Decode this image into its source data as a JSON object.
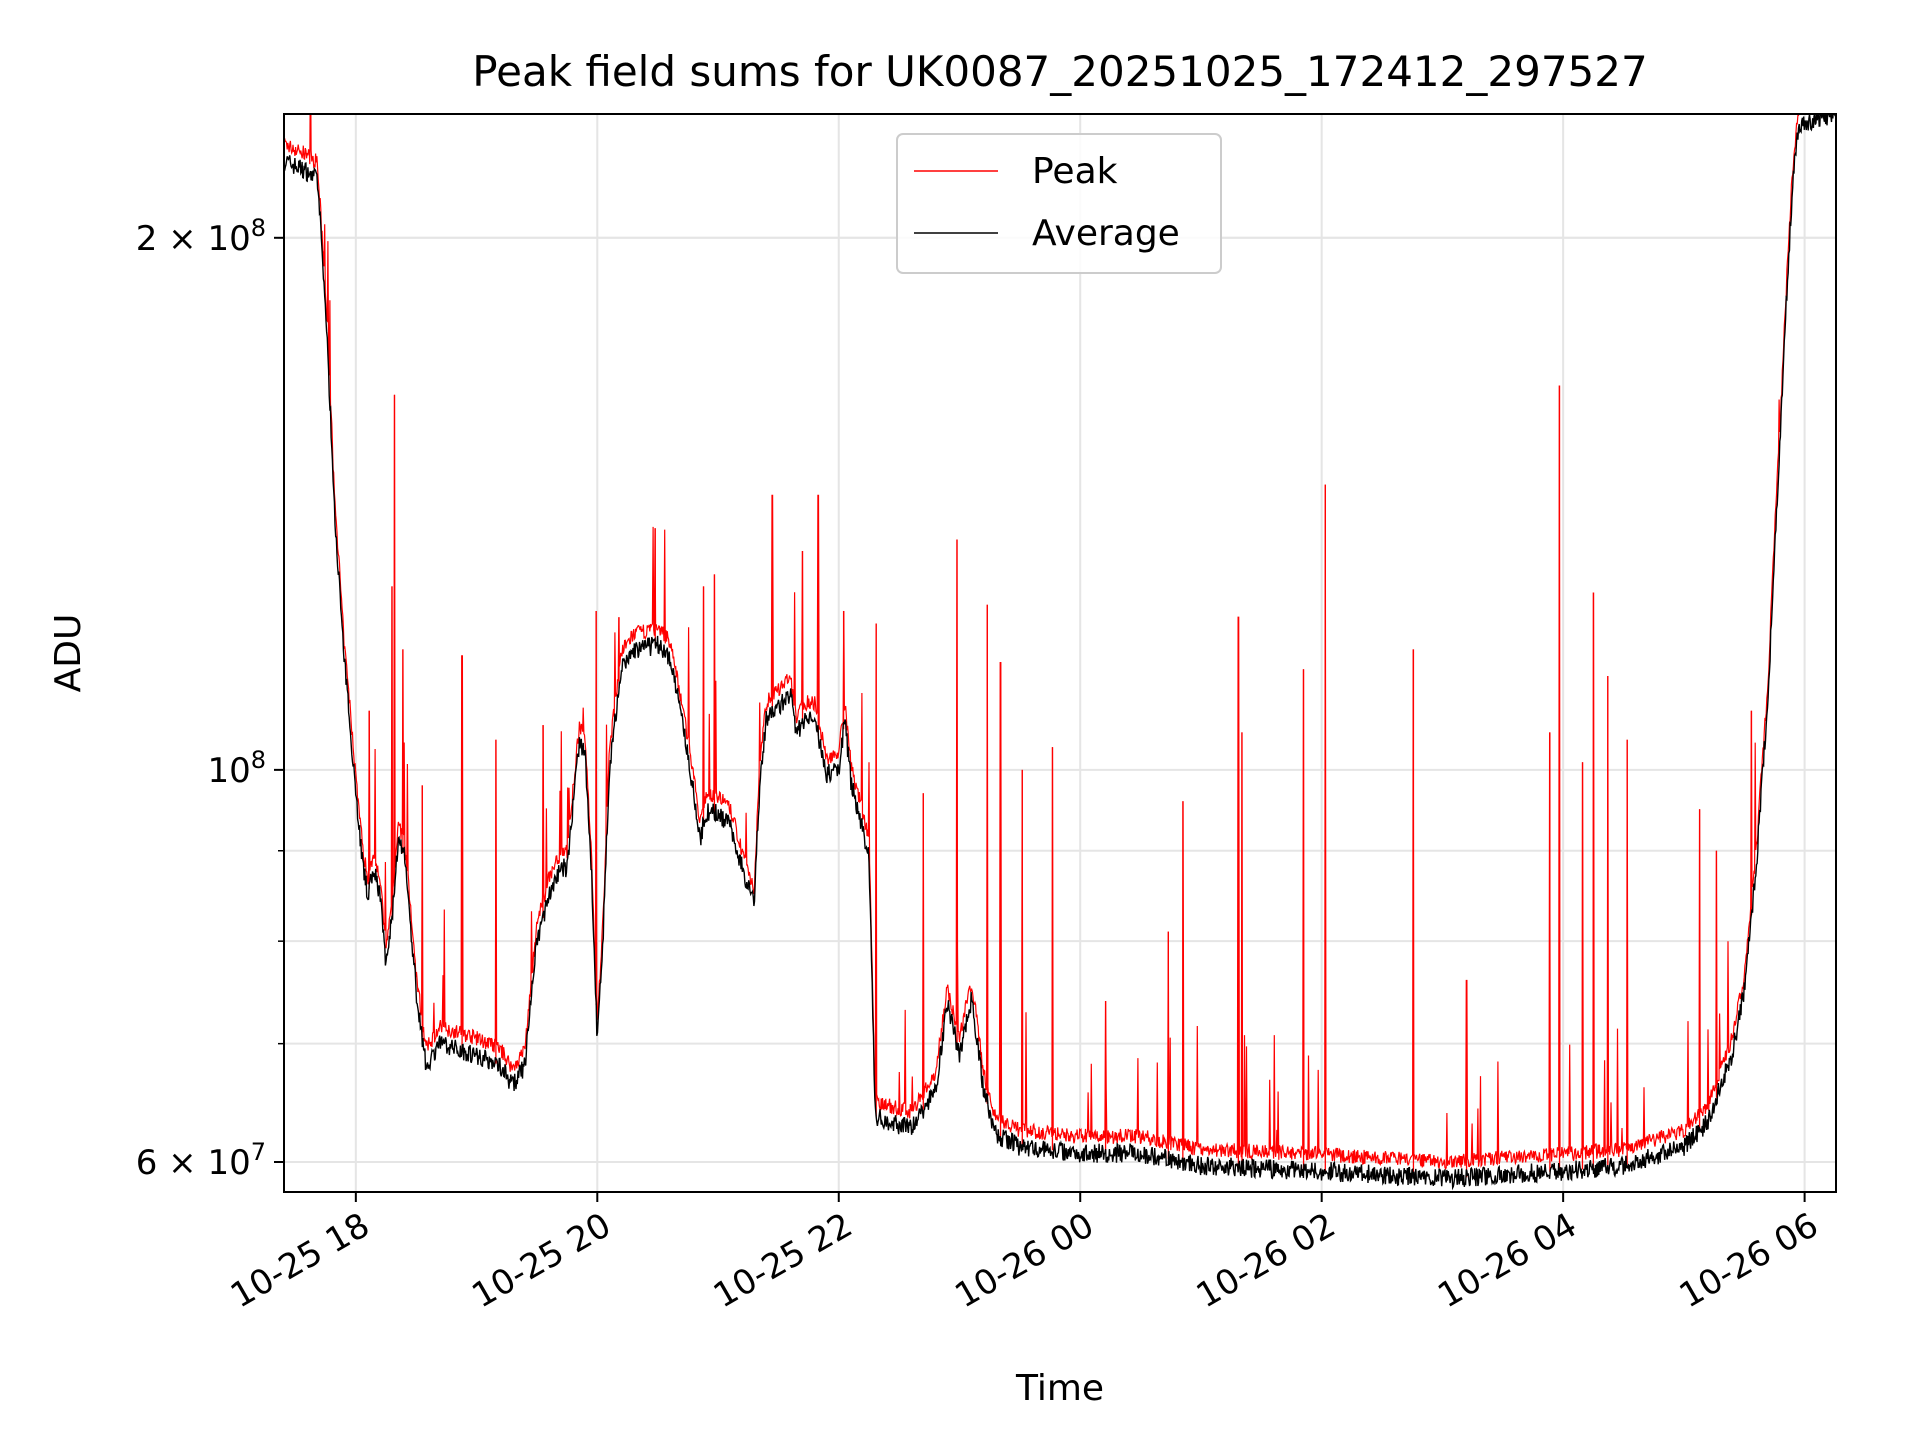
{
  "chart_data": {
    "type": "line",
    "title": "Peak field sums for UK0087_20251025_172412_297527",
    "xlabel": "Time",
    "ylabel": "ADU",
    "yscale": "log",
    "x_units": "hours since 10-25 00:00",
    "y_units": "ADU x 1e6",
    "xlim": [
      17.405,
      30.26
    ],
    "ylim": [
      57.7,
      235
    ],
    "grid": true,
    "legend_position": "top-center",
    "xticks": [
      {
        "value": 18,
        "label": "10-25 18"
      },
      {
        "value": 20,
        "label": "10-25 20"
      },
      {
        "value": 22,
        "label": "10-25 22"
      },
      {
        "value": 24,
        "label": "10-26 00"
      },
      {
        "value": 26,
        "label": "10-26 02"
      },
      {
        "value": 28,
        "label": "10-26 04"
      },
      {
        "value": 30,
        "label": "10-26 06"
      }
    ],
    "yticks_major": [
      {
        "value": 60,
        "base": "6",
        "exp": "7"
      },
      {
        "value": 100,
        "base": "",
        "exp": "8"
      },
      {
        "value": 200,
        "base": "2",
        "exp": "8"
      }
    ],
    "yticks_minor": [
      60,
      70,
      80,
      90,
      200
    ],
    "series": [
      {
        "name": "Average",
        "color": "#000000",
        "x": [
          17.41,
          17.6,
          17.68,
          17.75,
          17.82,
          17.9,
          18.0,
          18.06,
          18.1,
          18.15,
          18.2,
          18.25,
          18.3,
          18.35,
          18.4,
          18.5,
          18.58,
          18.7,
          19.0,
          19.2,
          19.3,
          19.4,
          19.5,
          19.6,
          19.7,
          19.75,
          19.8,
          19.85,
          19.9,
          19.95,
          20.0,
          20.05,
          20.1,
          20.2,
          20.3,
          20.5,
          20.6,
          20.7,
          20.8,
          20.85,
          20.9,
          21.0,
          21.1,
          21.2,
          21.3,
          21.35,
          21.4,
          21.5,
          21.6,
          21.65,
          21.7,
          21.8,
          21.9,
          22.0,
          22.05,
          22.1,
          22.2,
          22.25,
          22.3,
          22.4,
          22.6,
          22.8,
          22.9,
          23.0,
          23.1,
          23.2,
          23.3,
          23.5,
          24.0,
          24.5,
          25.0,
          26.0,
          27.0,
          28.0,
          28.5,
          29.0,
          29.2,
          29.4,
          29.5,
          29.6,
          29.7,
          29.8,
          29.9,
          29.95,
          30.26
        ],
        "y": [
          221,
          218,
          216,
          182,
          141,
          116,
          97,
          88,
          85,
          88,
          85,
          77.3,
          82.5,
          91,
          89.4,
          74.9,
          68,
          70,
          69,
          68,
          66.3,
          68,
          79.9,
          85,
          88,
          88,
          95.4,
          103.5,
          101.8,
          88,
          70,
          81,
          100,
          114,
          116.8,
          117.7,
          115.8,
          106.8,
          97,
          91,
          94.6,
          94.6,
          93,
          88,
          83.8,
          99.4,
          106.8,
          108.6,
          110.4,
          104.3,
          106.8,
          106.8,
          99.4,
          100,
          106.8,
          98.6,
          92.3,
          89.4,
          63.7,
          63.2,
          62.7,
          65.8,
          73.7,
          69,
          74.3,
          65.8,
          62.2,
          61.2,
          60.7,
          60.7,
          59.7,
          59.3,
          58.7,
          59.3,
          59.7,
          61.2,
          63.2,
          69,
          74.9,
          88,
          110.4,
          155,
          214,
          232,
          235
        ]
      },
      {
        "name": "Peak",
        "color": "#ff0000",
        "spikes_x": [
          18.11,
          18.3,
          18.32,
          18.39,
          18.55,
          18.88,
          19.16,
          19.55,
          19.99,
          20.18,
          20.48,
          20.88,
          20.97,
          21.45,
          21.7,
          21.83,
          22.04,
          22.31,
          22.7,
          22.98,
          23.23,
          23.34,
          23.52,
          23.77,
          24.21,
          24.73,
          24.85,
          25.31,
          25.34,
          25.85,
          26.03,
          26.76,
          27.2,
          27.89,
          27.97,
          28.16,
          28.25,
          28.37,
          28.53,
          29.13,
          29.27,
          29.56
        ],
        "spikes_y": [
          108,
          127,
          163,
          117,
          98,
          116,
          104,
          106,
          123,
          122,
          137,
          127,
          129,
          143,
          133,
          143,
          123,
          121,
          97,
          135,
          124,
          115,
          100,
          103,
          74,
          81,
          96,
          122,
          105,
          114,
          145,
          117,
          76,
          105,
          165,
          101,
          126,
          113,
          104,
          95,
          90,
          108
        ]
      }
    ],
    "legend": [
      {
        "label": "Peak",
        "color": "#ff0000"
      },
      {
        "label": "Average",
        "color": "#000000"
      }
    ]
  }
}
